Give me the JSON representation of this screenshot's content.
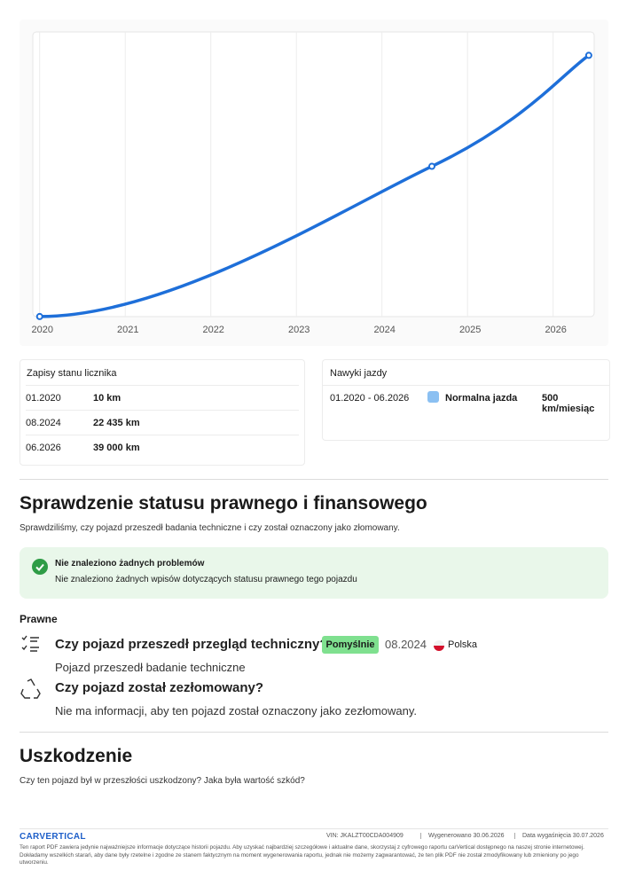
{
  "chart_data": {
    "type": "line",
    "x": [
      "2020-01",
      "2024-08",
      "2026-06"
    ],
    "values": [
      10,
      22435,
      39000
    ],
    "color": "#1e6fd9",
    "xlim": [
      2019.92,
      2026.48
    ],
    "xticks": [
      2020,
      2021,
      2022,
      2023,
      2024,
      2025,
      2026
    ],
    "ylim": [
      0,
      42500
    ],
    "grid": true
  },
  "odometer": {
    "title": "Zapisy stanu licznika",
    "rows": [
      [
        "01.2020",
        "10 km"
      ],
      [
        "08.2024",
        "22 435 km"
      ],
      [
        "06.2026",
        "39 000 km"
      ]
    ]
  },
  "driving": {
    "title": "Nawyki jazdy",
    "period": "01.2020 - 06.2026",
    "label": "Normalna jazda",
    "value": "500 km/miesiąc"
  },
  "legal": {
    "heading": "Sprawdzenie statusu prawnego i finansowego",
    "subtitle": "Sprawdziliśmy, czy pojazd przeszedł badania techniczne i czy został oznaczony jako złomowany.",
    "status_title": "Nie znaleziono żadnych problemów",
    "status_text": "Nie znaleziono żadnych wpisów dotyczących statusu prawnego tego pojazdu",
    "section": "Prawne",
    "items": [
      {
        "question": "Czy pojazd przeszedł przegląd techniczny?",
        "badge": "Pomyślnie",
        "date": "08.2024",
        "country": "Polska",
        "description": "Pojazd przeszedł badanie techniczne"
      },
      {
        "question": "Czy pojazd został zezłomowany?",
        "description": "Nie ma informacji, aby ten pojazd został oznaczony jako zezłomowany."
      }
    ]
  },
  "damage": {
    "heading": "Uszkodzenie",
    "text": "Czy ten pojazd był w przeszłości uszkodzony? Jaka była wartość szkód?"
  },
  "footer": {
    "logo": "CARVERTICAL",
    "vin": "VIN: JKALZT00CDA004909",
    "generated": "Wygenerowano 30.06.2026",
    "expiry": "Data wygaśnięcia 30.07.2026",
    "disclaimer": "Ten raport PDF zawiera jedynie najważniejsze informacje dotyczące historii pojazdu. Aby uzyskać najbardziej szczegółowe i aktualne dane, skorzystaj z cyfrowego raportu carVertical dostępnego na naszej stronie internetowej. Dokładamy wszelkich starań, aby dane były rzetelne i zgodne ze stanem faktycznym na moment wygenerowania raportu, jednak nie możemy zagwarantować, że ten plik PDF nie został zmodyfikowany lub zmieniony po jego utworzeniu."
  }
}
